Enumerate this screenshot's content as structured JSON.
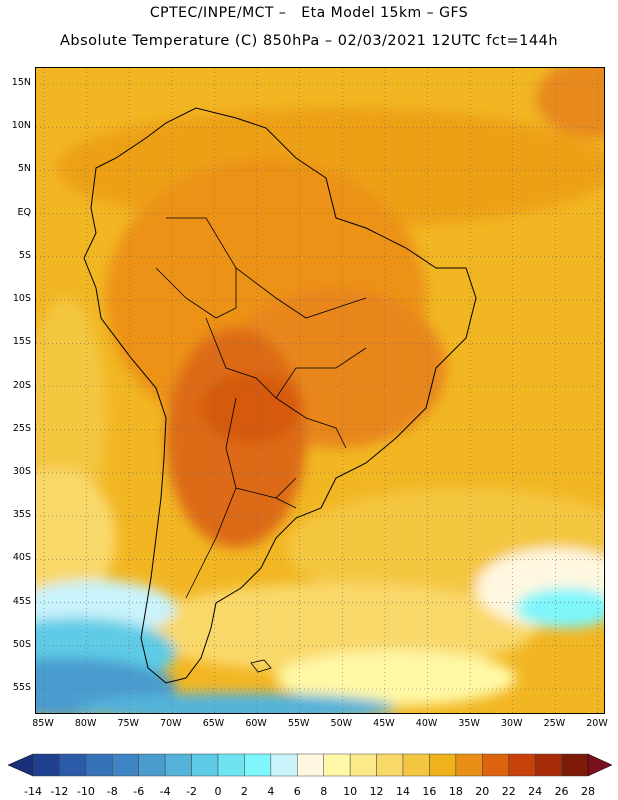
{
  "header": {
    "line1": "CPTEC/INPE/MCT –   Eta Model 15km – GFS",
    "line2": "Absolute Temperature (C) 850hPa – 02/03/2021 12UTC fct=144h"
  },
  "map": {
    "lat_labels": [
      "15N",
      "10N",
      "5N",
      "EQ",
      "5S",
      "10S",
      "15S",
      "20S",
      "25S",
      "30S",
      "35S",
      "40S",
      "45S",
      "50S",
      "55S"
    ],
    "lon_labels": [
      "85W",
      "80W",
      "75W",
      "70W",
      "65W",
      "60W",
      "55W",
      "50W",
      "45W",
      "40W",
      "35W",
      "30W",
      "25W",
      "20W"
    ],
    "grid": true
  },
  "colorbar": {
    "labels": [
      "-14",
      "-12",
      "-10",
      "-8",
      "-6",
      "-4",
      "-2",
      "0",
      "2",
      "4",
      "6",
      "8",
      "10",
      "12",
      "14",
      "16",
      "18",
      "20",
      "22",
      "24",
      "26",
      "28"
    ],
    "colors": [
      "#1f3f8f",
      "#2a5aa8",
      "#3672b8",
      "#3f85c4",
      "#4a9ccf",
      "#55b3da",
      "#5fcbe6",
      "#6ee4f0",
      "#7ef6fb",
      "#c9f3fb",
      "#fff7e0",
      "#fff8a6",
      "#fce98a",
      "#f9d86a",
      "#f4c640",
      "#f0b21a",
      "#e98e17",
      "#dd640e",
      "#c7420a",
      "#a82b08",
      "#7e1a08"
    ],
    "low_color": "#1b2f7a",
    "high_color": "#7a0f20"
  }
}
